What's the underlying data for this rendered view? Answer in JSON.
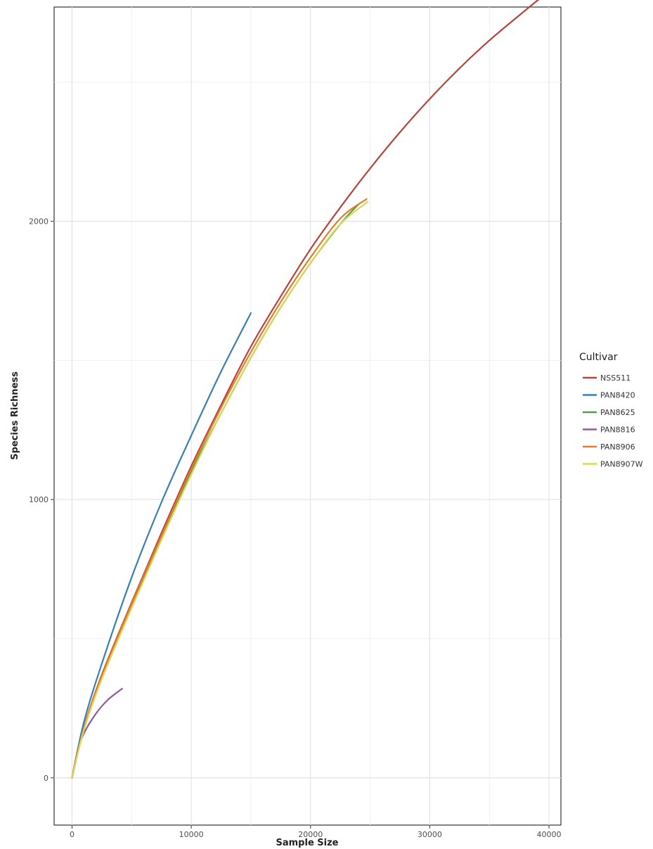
{
  "chart_data": {
    "type": "line",
    "title": "",
    "xlabel": "Sample Size",
    "ylabel": "Species Richness",
    "xlim": [
      -1500,
      41000
    ],
    "ylim": [
      -170,
      2770
    ],
    "xticks": [
      0,
      10000,
      20000,
      30000,
      40000
    ],
    "yticks": [
      0,
      1000,
      2000
    ],
    "grid": true,
    "legend": {
      "title": "Cultivar",
      "position": "right"
    },
    "series": [
      {
        "name": "NSS511",
        "color": "#b5443f",
        "x": [
          0,
          1000,
          2500,
          5000,
          7500,
          10000,
          12500,
          15000,
          17500,
          20000,
          22500,
          25000,
          27500,
          30000,
          32500,
          35000,
          37500,
          39500
        ],
        "y": [
          0,
          180,
          370,
          630,
          880,
          1120,
          1340,
          1550,
          1730,
          1900,
          2050,
          2190,
          2320,
          2440,
          2550,
          2650,
          2740,
          2810
        ]
      },
      {
        "name": "PAN8420",
        "color": "#3a7fb1",
        "x": [
          0,
          1000,
          2500,
          5000,
          7500,
          10000,
          12500,
          15000
        ],
        "y": [
          0,
          200,
          410,
          720,
          990,
          1230,
          1460,
          1670
        ]
      },
      {
        "name": "PAN8625",
        "color": "#4ba345",
        "x": [
          0,
          1000,
          2500,
          5000,
          7500,
          10000,
          12500,
          15000,
          17500,
          20000,
          22500,
          24000
        ],
        "y": [
          0,
          175,
          360,
          620,
          860,
          1100,
          1310,
          1510,
          1690,
          1850,
          1990,
          2060
        ]
      },
      {
        "name": "PAN8816",
        "color": "#8e5b9c",
        "x": [
          0,
          500,
          1000,
          2000,
          3000,
          4200
        ],
        "y": [
          0,
          100,
          160,
          230,
          280,
          320
        ]
      },
      {
        "name": "PAN8906",
        "color": "#e07b33",
        "x": [
          0,
          1000,
          2500,
          5000,
          7500,
          10000,
          12500,
          15000,
          17500,
          20000,
          22500,
          24700
        ],
        "y": [
          0,
          178,
          365,
          625,
          870,
          1110,
          1330,
          1530,
          1710,
          1870,
          2010,
          2080
        ]
      },
      {
        "name": "PAN8907W",
        "color": "#dcd84a",
        "x": [
          0,
          1000,
          2500,
          5000,
          7500,
          10000,
          12500,
          15000,
          17500,
          20000,
          22500,
          24800
        ],
        "y": [
          0,
          172,
          355,
          610,
          855,
          1090,
          1310,
          1510,
          1690,
          1850,
          1990,
          2070
        ]
      }
    ]
  }
}
